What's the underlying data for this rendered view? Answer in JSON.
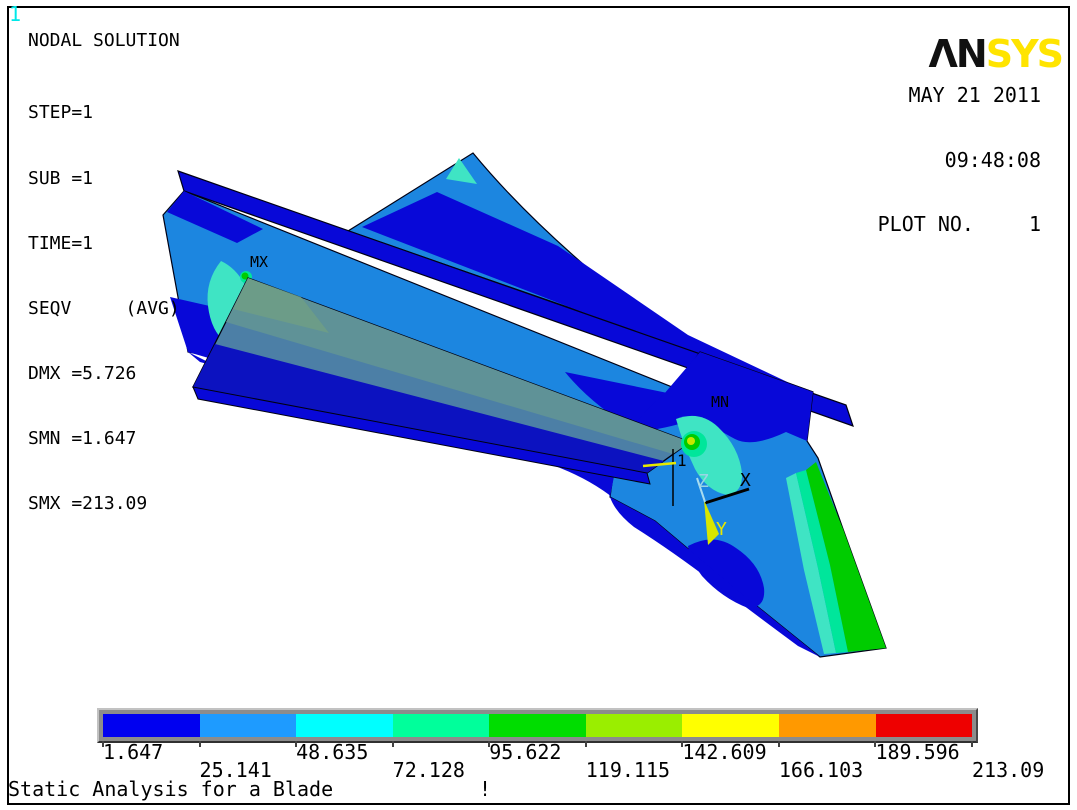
{
  "header": {
    "window_marker": "1",
    "logo_black": "ΛN",
    "logo_yellow": "SYS",
    "date": "MAY 21 2011",
    "time": "09:48:08",
    "plot_no_label": "PLOT NO.",
    "plot_no_value": "1"
  },
  "solution_info": {
    "title": "NODAL SOLUTION",
    "lines": [
      "STEP=1",
      "SUB =1",
      "TIME=1",
      "SEQV     (AVG)",
      "DMX =5.726",
      "SMN =1.647",
      "SMX =213.09"
    ]
  },
  "model": {
    "max_marker": "MX",
    "min_marker": "MN",
    "csys_marker": "1",
    "axis_x": "X",
    "axis_y": "Y",
    "axis_z": "Z"
  },
  "legend": {
    "colors": [
      "#0000F0",
      "#1E9BFF",
      "#00FFFF",
      "#00FF9B",
      "#00DD00",
      "#9AEE00",
      "#FFFF00",
      "#FF9900",
      "#EE0000"
    ],
    "labels": [
      "1.647",
      "25.141",
      "48.635",
      "72.128",
      "95.622",
      "119.115",
      "142.609",
      "166.103",
      "189.596",
      "213.09"
    ],
    "min": 1.647,
    "max": 213.09
  },
  "footer": {
    "title": "Static Analysis for a Blade",
    "marker": "!"
  },
  "colors": {
    "contour_navy": "#0808D8",
    "contour_blue": "#1C86E0",
    "contour_cyan": "#3FE4C4",
    "triad_yellow": "#D8E600",
    "triad_z_blue": "#A8DCF0",
    "marker_cyan": "#00E8E8",
    "logo_yellow_hex": "#FFE400"
  }
}
